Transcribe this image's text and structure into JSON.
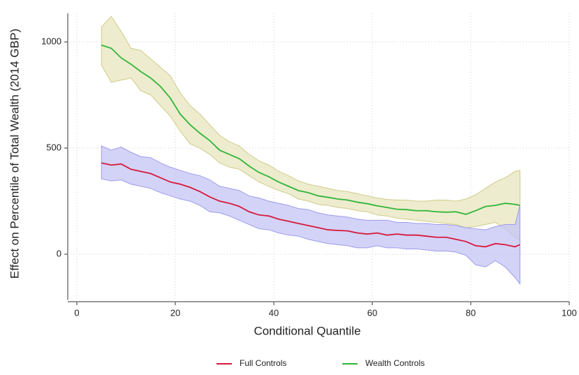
{
  "chart_data": {
    "type": "line",
    "xlabel": "Conditional Quantile",
    "ylabel": "Effect on Percentile of Total Wealth (2014 GBP)",
    "x": [
      5,
      7,
      9,
      11,
      13,
      15,
      17,
      19,
      21,
      23,
      25,
      27,
      29,
      31,
      33,
      35,
      37,
      39,
      41,
      43,
      45,
      47,
      49,
      51,
      53,
      55,
      57,
      59,
      61,
      63,
      65,
      67,
      69,
      71,
      73,
      75,
      77,
      79,
      81,
      83,
      85,
      87,
      89,
      90
    ],
    "series": [
      {
        "name": "Full Controls",
        "color": "#d7183a",
        "values": [
          430,
          420,
          425,
          400,
          390,
          380,
          360,
          340,
          330,
          315,
          295,
          270,
          250,
          240,
          225,
          200,
          185,
          180,
          165,
          155,
          145,
          135,
          125,
          115,
          112,
          110,
          100,
          95,
          100,
          90,
          95,
          90,
          90,
          85,
          80,
          80,
          70,
          60,
          40,
          35,
          50,
          45,
          35,
          45
        ],
        "band_color": "#c4c4f6",
        "band_stroke": "#9c9cec",
        "upper": [
          510,
          490,
          505,
          480,
          460,
          455,
          430,
          410,
          395,
          380,
          370,
          350,
          320,
          310,
          300,
          275,
          265,
          250,
          240,
          230,
          215,
          210,
          195,
          185,
          180,
          175,
          165,
          160,
          160,
          160,
          150,
          150,
          145,
          145,
          140,
          140,
          135,
          125,
          120,
          115,
          130,
          140,
          140,
          230
        ],
        "lower": [
          355,
          345,
          350,
          330,
          320,
          310,
          290,
          275,
          260,
          250,
          230,
          200,
          195,
          180,
          160,
          140,
          120,
          115,
          100,
          90,
          85,
          70,
          60,
          50,
          45,
          40,
          30,
          30,
          40,
          30,
          30,
          25,
          25,
          20,
          15,
          15,
          10,
          -5,
          -50,
          -60,
          -30,
          -60,
          -110,
          -140
        ]
      },
      {
        "name": "Wealth Controls",
        "color": "#2fb53a",
        "values": [
          985,
          970,
          925,
          895,
          860,
          830,
          790,
          735,
          660,
          610,
          570,
          535,
          490,
          470,
          450,
          415,
          385,
          365,
          340,
          320,
          300,
          290,
          275,
          268,
          260,
          255,
          245,
          238,
          228,
          220,
          212,
          210,
          205,
          205,
          200,
          198,
          200,
          188,
          205,
          225,
          230,
          240,
          235,
          230
        ],
        "band_color": "#e8e6be",
        "band_stroke": "#cfcb88",
        "upper": [
          1070,
          1120,
          1050,
          970,
          960,
          920,
          880,
          840,
          760,
          700,
          660,
          610,
          560,
          530,
          510,
          470,
          440,
          420,
          390,
          370,
          345,
          330,
          320,
          310,
          300,
          295,
          285,
          275,
          265,
          258,
          255,
          255,
          250,
          250,
          255,
          255,
          250,
          260,
          280,
          310,
          340,
          360,
          390,
          395
        ],
        "lower": [
          890,
          810,
          820,
          830,
          770,
          750,
          700,
          650,
          580,
          520,
          500,
          470,
          430,
          410,
          400,
          370,
          340,
          320,
          300,
          285,
          260,
          250,
          235,
          230,
          220,
          215,
          205,
          200,
          185,
          180,
          170,
          165,
          160,
          155,
          150,
          145,
          140,
          125,
          130,
          140,
          150,
          120,
          80,
          65
        ]
      }
    ],
    "xlim": [
      0,
      100
    ],
    "xticks": [
      0,
      20,
      40,
      60,
      80,
      100
    ],
    "ylim": [
      -215,
      1135
    ],
    "yticks": [
      0,
      500,
      1000
    ],
    "grid": true,
    "legend": "bottom"
  }
}
